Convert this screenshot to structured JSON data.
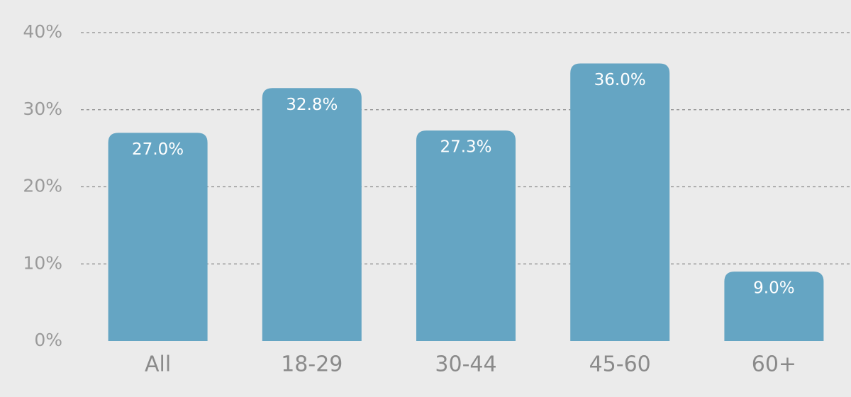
{
  "chart_data": {
    "type": "bar",
    "categories": [
      "All",
      "18-29",
      "30-44",
      "45-60",
      "60+"
    ],
    "values": [
      27.0,
      32.8,
      27.3,
      36.0,
      9.0
    ],
    "value_labels": [
      "27.0%",
      "32.8%",
      "27.3%",
      "36.0%",
      "9.0%"
    ],
    "color": "#65a5c3",
    "ylim": [
      0,
      40
    ],
    "yticks": [
      {
        "value": 0,
        "label": "0%"
      },
      {
        "value": 10,
        "label": "10%"
      },
      {
        "value": 20,
        "label": "20%"
      },
      {
        "value": 30,
        "label": "30%"
      },
      {
        "value": 40,
        "label": "40%"
      }
    ],
    "grid": true
  }
}
